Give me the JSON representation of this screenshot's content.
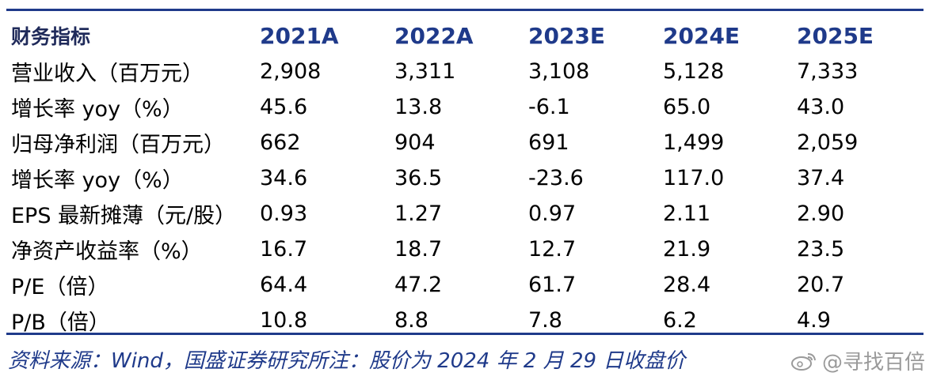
{
  "table": {
    "header": {
      "label": "财务指标",
      "years": [
        "2021A",
        "2022A",
        "2023E",
        "2024E",
        "2025E"
      ]
    },
    "rows": [
      {
        "label": "营业收入（百万元）",
        "values": [
          "2,908",
          "3,311",
          "3,108",
          "5,128",
          "7,333"
        ]
      },
      {
        "label": "增长率 yoy（%）",
        "values": [
          "45.6",
          "13.8",
          "-6.1",
          "65.0",
          "43.0"
        ]
      },
      {
        "label": "归母净利润（百万元）",
        "values": [
          "662",
          "904",
          "691",
          "1,499",
          "2,059"
        ]
      },
      {
        "label": "增长率 yoy（%）",
        "values": [
          "34.6",
          "36.5",
          "-23.6",
          "117.0",
          "37.4"
        ]
      },
      {
        "label": "EPS 最新摊薄（元/股）",
        "values": [
          "0.93",
          "1.27",
          "0.97",
          "2.11",
          "2.90"
        ]
      },
      {
        "label": "净资产收益率（%）",
        "values": [
          "16.7",
          "18.7",
          "12.7",
          "21.9",
          "23.5"
        ]
      },
      {
        "label": "P/E（倍）",
        "values": [
          "64.4",
          "47.2",
          "61.7",
          "28.4",
          "20.7"
        ]
      },
      {
        "label": "P/B（倍）",
        "values": [
          "10.8",
          "8.8",
          "7.8",
          "6.2",
          "4.9"
        ]
      }
    ]
  },
  "footnote": "资料来源：Wind，国盛证券研究所注：股价为 2024 年 2 月 29 日收盘价",
  "watermark": {
    "text": "@寻找百倍",
    "icon": "weibo-icon"
  },
  "colors": {
    "accent": "#1f3a8a"
  }
}
